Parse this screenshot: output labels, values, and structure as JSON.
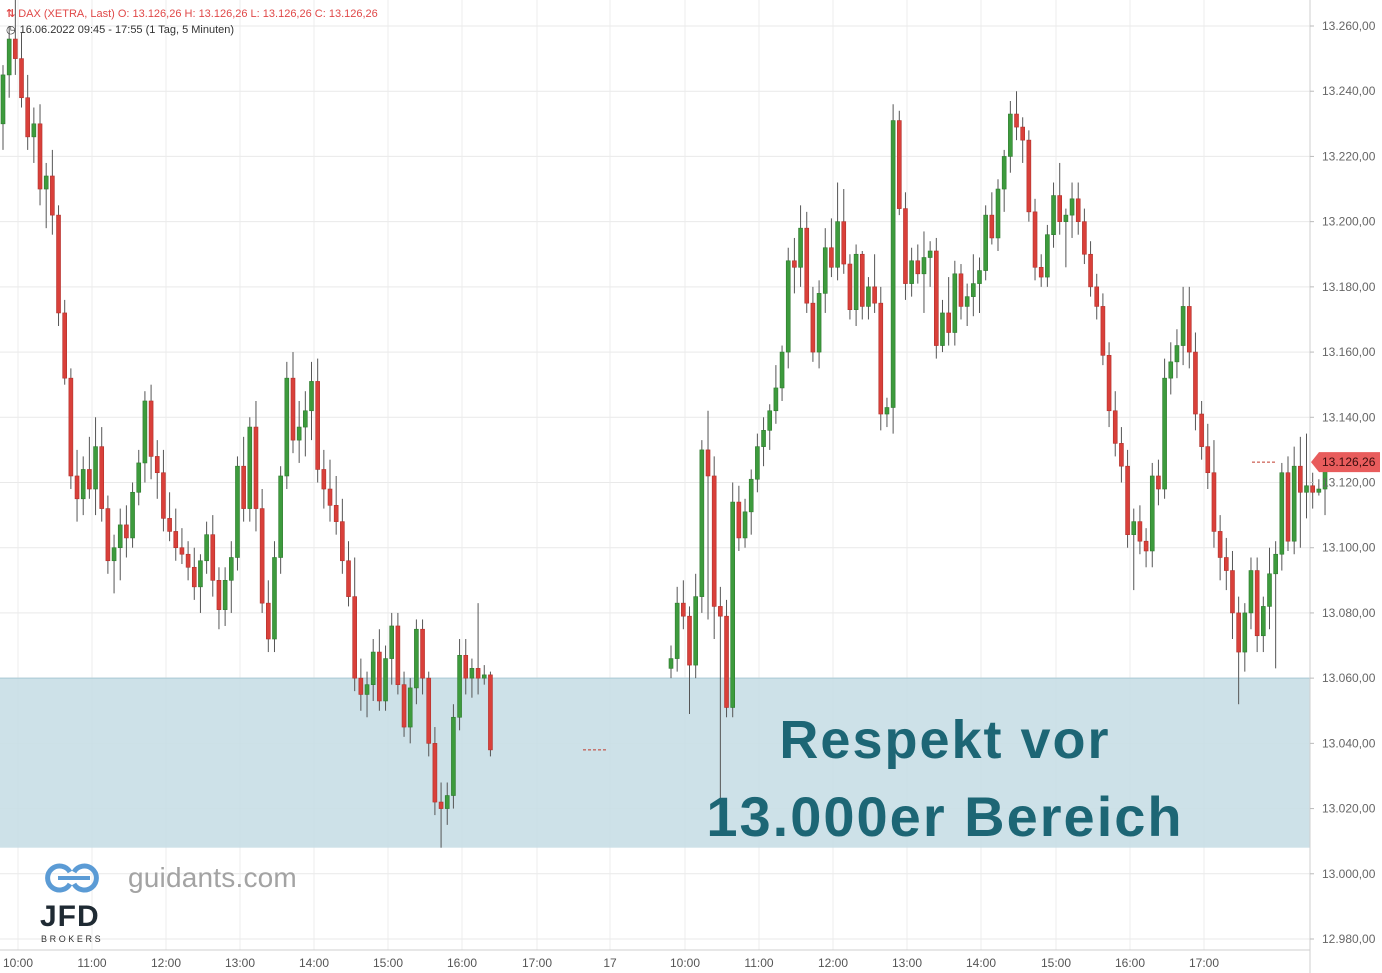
{
  "header": {
    "instrument_icon": "candlestick-icon",
    "ohlc_text": "DAX (XETRA, Last)  O: 13.126,26  H: 13.126,26  L: 13.126,26  C: 13.126,26",
    "clock_icon": "clock-icon",
    "period_text": "16.06.2022 09:45 - 17:55   (1 Tag, 5 Minuten)"
  },
  "annotation": {
    "line1": "Respekt vor",
    "line2": "13.000er Bereich"
  },
  "branding": {
    "site": "guidants.com",
    "logo": "JFD",
    "logo_sub": "BROKERS"
  },
  "colors": {
    "up": "#3d9b3d",
    "down": "#d9403a",
    "zone": "#c8dee6",
    "annotation_text": "#1d6675",
    "price_tag": "#e85c5c"
  },
  "chart_data": {
    "type": "candlestick",
    "title": "DAX (XETRA, Last)",
    "interval": "5 Minuten",
    "ylim": [
      12972,
      13268
    ],
    "y_ticks": [
      "13.260,00",
      "13.240,00",
      "13.220,00",
      "13.200,00",
      "13.180,00",
      "13.160,00",
      "13.140,00",
      "13.120,00",
      "13.100,00",
      "13.080,00",
      "13.060,00",
      "13.040,00",
      "13.020,00",
      "13.000,00",
      "12.980,00"
    ],
    "y_tick_values": [
      13260,
      13240,
      13220,
      13200,
      13180,
      13160,
      13140,
      13120,
      13100,
      13080,
      13060,
      13040,
      13020,
      13000,
      12980
    ],
    "x_labels": [
      "10:00",
      "11:00",
      "12:00",
      "13:00",
      "14:00",
      "15:00",
      "16:00",
      "17:00",
      "17",
      "10:00",
      "11:00",
      "12:00",
      "13:00",
      "14:00",
      "15:00",
      "16:00",
      "17:00"
    ],
    "last_price": 13126.26,
    "last_price_label": "13.126,26",
    "zone": {
      "low": 13008,
      "high": 13060
    },
    "candles": [
      [
        13230,
        13248,
        13222,
        13245
      ],
      [
        13245,
        13260,
        13238,
        13256
      ],
      [
        13256,
        13270,
        13245,
        13250
      ],
      [
        13250,
        13258,
        13235,
        13238
      ],
      [
        13238,
        13245,
        13222,
        13226
      ],
      [
        13226,
        13235,
        13218,
        13230
      ],
      [
        13230,
        13236,
        13205,
        13210
      ],
      [
        13210,
        13218,
        13198,
        13214
      ],
      [
        13214,
        13222,
        13196,
        13202
      ],
      [
        13202,
        13205,
        13168,
        13172
      ],
      [
        13172,
        13176,
        13150,
        13152
      ],
      [
        13152,
        13155,
        13118,
        13122
      ],
      [
        13122,
        13130,
        13108,
        13115
      ],
      [
        13115,
        13128,
        13110,
        13124
      ],
      [
        13124,
        13134,
        13115,
        13118
      ],
      [
        13118,
        13140,
        13110,
        13131
      ],
      [
        13131,
        13137,
        13108,
        13112
      ],
      [
        13112,
        13116,
        13092,
        13096
      ],
      [
        13096,
        13104,
        13086,
        13100
      ],
      [
        13100,
        13112,
        13090,
        13107
      ],
      [
        13107,
        13113,
        13097,
        13103
      ],
      [
        13103,
        13120,
        13100,
        13117
      ],
      [
        13117,
        13130,
        13113,
        13126
      ],
      [
        13126,
        13148,
        13120,
        13145
      ],
      [
        13145,
        13150,
        13121,
        13128
      ],
      [
        13128,
        13133,
        13115,
        13123
      ],
      [
        13123,
        13130,
        13105,
        13109
      ],
      [
        13109,
        13117,
        13102,
        13105
      ],
      [
        13105,
        13112,
        13096,
        13100
      ],
      [
        13100,
        13106,
        13095,
        13098
      ],
      [
        13098,
        13102,
        13090,
        13094
      ],
      [
        13094,
        13100,
        13084,
        13088
      ],
      [
        13088,
        13098,
        13080,
        13096
      ],
      [
        13096,
        13108,
        13092,
        13104
      ],
      [
        13104,
        13110,
        13085,
        13090
      ],
      [
        13090,
        13094,
        13075,
        13081
      ],
      [
        13081,
        13094,
        13076,
        13090
      ],
      [
        13090,
        13102,
        13080,
        13097
      ],
      [
        13097,
        13128,
        13093,
        13125
      ],
      [
        13125,
        13134,
        13108,
        13112
      ],
      [
        13112,
        13140,
        13108,
        13137
      ],
      [
        13137,
        13145,
        13105,
        13112
      ],
      [
        13112,
        13118,
        13080,
        13083
      ],
      [
        13083,
        13090,
        13068,
        13072
      ],
      [
        13072,
        13102,
        13068,
        13097
      ],
      [
        13097,
        13125,
        13092,
        13122
      ],
      [
        13122,
        13157,
        13118,
        13152
      ],
      [
        13152,
        13160,
        13129,
        13133
      ],
      [
        13133,
        13145,
        13126,
        13137
      ],
      [
        13137,
        13148,
        13128,
        13142
      ],
      [
        13142,
        13157,
        13133,
        13151
      ],
      [
        13151,
        13158,
        13120,
        13124
      ],
      [
        13124,
        13130,
        13112,
        13118
      ],
      [
        13118,
        13127,
        13108,
        13113
      ],
      [
        13113,
        13122,
        13104,
        13108
      ],
      [
        13108,
        13115,
        13092,
        13096
      ],
      [
        13096,
        13102,
        13082,
        13085
      ],
      [
        13085,
        13097,
        13056,
        13060
      ],
      [
        13060,
        13066,
        13050,
        13055
      ],
      [
        13055,
        13062,
        13048,
        13058
      ],
      [
        13058,
        13072,
        13053,
        13068
      ],
      [
        13068,
        13075,
        13050,
        13053
      ],
      [
        13053,
        13070,
        13050,
        13066
      ],
      [
        13066,
        13080,
        13058,
        13076
      ],
      [
        13076,
        13080,
        13055,
        13058
      ],
      [
        13058,
        13062,
        13042,
        13045
      ],
      [
        13045,
        13060,
        13040,
        13057
      ],
      [
        13057,
        13078,
        13052,
        13075
      ],
      [
        13075,
        13078,
        13055,
        13060
      ],
      [
        13060,
        13062,
        13036,
        13040
      ],
      [
        13040,
        13045,
        13018,
        13022
      ],
      [
        13022,
        13028,
        13008,
        13020
      ],
      [
        13020,
        13028,
        13015,
        13024
      ],
      [
        13024,
        13052,
        13020,
        13048
      ],
      [
        13048,
        13072,
        13044,
        13067
      ],
      [
        13067,
        13072,
        13055,
        13060
      ],
      [
        13060,
        13066,
        13054,
        13063
      ],
      [
        13063,
        13083,
        13055,
        13060
      ],
      [
        13060,
        13064,
        13058,
        13061
      ],
      [
        13061,
        13062,
        13036,
        13038
      ],
      [
        13063,
        13070,
        13060,
        13066
      ],
      [
        13066,
        13088,
        13062,
        13083
      ],
      [
        13083,
        13090,
        13075,
        13079
      ],
      [
        13079,
        13082,
        13049,
        13064
      ],
      [
        13064,
        13092,
        13060,
        13085
      ],
      [
        13085,
        13133,
        13080,
        13130
      ],
      [
        13130,
        13142,
        13078,
        13122
      ],
      [
        13122,
        13128,
        13072,
        13082
      ],
      [
        13082,
        13088,
        13021,
        13079
      ],
      [
        13079,
        13084,
        13048,
        13051
      ],
      [
        13051,
        13120,
        13048,
        13114
      ],
      [
        13114,
        13119,
        13099,
        13103
      ],
      [
        13103,
        13115,
        13100,
        13111
      ],
      [
        13111,
        13124,
        13104,
        13121
      ],
      [
        13121,
        13135,
        13117,
        13131
      ],
      [
        13131,
        13140,
        13125,
        13136
      ],
      [
        13136,
        13144,
        13130,
        13142
      ],
      [
        13142,
        13156,
        13138,
        13149
      ],
      [
        13149,
        13162,
        13145,
        13160
      ],
      [
        13160,
        13192,
        13155,
        13188
      ],
      [
        13188,
        13195,
        13178,
        13186
      ],
      [
        13186,
        13205,
        13180,
        13198
      ],
      [
        13198,
        13203,
        13172,
        13175
      ],
      [
        13175,
        13180,
        13157,
        13160
      ],
      [
        13160,
        13182,
        13155,
        13178
      ],
      [
        13178,
        13198,
        13172,
        13192
      ],
      [
        13192,
        13201,
        13183,
        13186
      ],
      [
        13186,
        13212,
        13182,
        13200
      ],
      [
        13200,
        13210,
        13184,
        13187
      ],
      [
        13187,
        13190,
        13170,
        13173
      ],
      [
        13173,
        13193,
        13168,
        13190
      ],
      [
        13190,
        13191,
        13170,
        13174
      ],
      [
        13174,
        13183,
        13170,
        13180
      ],
      [
        13180,
        13190,
        13172,
        13175
      ],
      [
        13175,
        13180,
        13136,
        13141
      ],
      [
        13141,
        13146,
        13137,
        13143
      ],
      [
        13143,
        13236,
        13135,
        13231
      ],
      [
        13231,
        13234,
        13202,
        13204
      ],
      [
        13204,
        13209,
        13176,
        13181
      ],
      [
        13181,
        13192,
        13177,
        13188
      ],
      [
        13188,
        13193,
        13181,
        13184
      ],
      [
        13184,
        13197,
        13172,
        13189
      ],
      [
        13189,
        13194,
        13180,
        13191
      ],
      [
        13191,
        13195,
        13158,
        13162
      ],
      [
        13162,
        13176,
        13160,
        13172
      ],
      [
        13172,
        13183,
        13162,
        13166
      ],
      [
        13166,
        13188,
        13162,
        13184
      ],
      [
        13184,
        13187,
        13170,
        13174
      ],
      [
        13174,
        13181,
        13168,
        13177
      ],
      [
        13177,
        13190,
        13171,
        13181
      ],
      [
        13181,
        13189,
        13172,
        13185
      ],
      [
        13185,
        13205,
        13182,
        13202
      ],
      [
        13202,
        13209,
        13193,
        13195
      ],
      [
        13195,
        13213,
        13191,
        13210
      ],
      [
        13210,
        13222,
        13203,
        13220
      ],
      [
        13220,
        13237,
        13215,
        13233
      ],
      [
        13233,
        13240,
        13225,
        13229
      ],
      [
        13229,
        13232,
        13218,
        13225
      ],
      [
        13225,
        13228,
        13200,
        13203
      ],
      [
        13203,
        13207,
        13182,
        13186
      ],
      [
        13186,
        13190,
        13180,
        13183
      ],
      [
        13183,
        13199,
        13180,
        13196
      ],
      [
        13196,
        13212,
        13192,
        13208
      ],
      [
        13208,
        13218,
        13196,
        13200
      ],
      [
        13200,
        13204,
        13186,
        13202
      ],
      [
        13202,
        13212,
        13195,
        13207
      ],
      [
        13207,
        13212,
        13196,
        13200
      ],
      [
        13200,
        13204,
        13187,
        13190
      ],
      [
        13190,
        13194,
        13177,
        13180
      ],
      [
        13180,
        13184,
        13170,
        13174
      ],
      [
        13174,
        13178,
        13156,
        13159
      ],
      [
        13159,
        13163,
        13137,
        13142
      ],
      [
        13142,
        13148,
        13128,
        13132
      ],
      [
        13132,
        13137,
        13120,
        13125
      ],
      [
        13125,
        13130,
        13100,
        13104
      ],
      [
        13104,
        13112,
        13087,
        13108
      ],
      [
        13108,
        13113,
        13098,
        13102
      ],
      [
        13102,
        13106,
        13094,
        13099
      ],
      [
        13099,
        13126,
        13094,
        13122
      ],
      [
        13122,
        13127,
        13113,
        13118
      ],
      [
        13118,
        13158,
        13115,
        13152
      ],
      [
        13152,
        13163,
        13147,
        13157
      ],
      [
        13157,
        13167,
        13152,
        13162
      ],
      [
        13162,
        13180,
        13156,
        13174
      ],
      [
        13174,
        13180,
        13155,
        13160
      ],
      [
        13160,
        13166,
        13136,
        13141
      ],
      [
        13141,
        13145,
        13127,
        13131
      ],
      [
        13131,
        13138,
        13118,
        13123
      ],
      [
        13123,
        13133,
        13100,
        13105
      ],
      [
        13105,
        13110,
        13090,
        13097
      ],
      [
        13097,
        13103,
        13087,
        13093
      ],
      [
        13093,
        13099,
        13072,
        13080
      ],
      [
        13080,
        13085,
        13052,
        13068
      ],
      [
        13068,
        13083,
        13062,
        13080
      ],
      [
        13080,
        13097,
        13075,
        13093
      ],
      [
        13093,
        13097,
        13068,
        13073
      ],
      [
        13073,
        13085,
        13068,
        13082
      ],
      [
        13082,
        13100,
        13075,
        13092
      ],
      [
        13092,
        13102,
        13063,
        13098
      ],
      [
        13098,
        13126,
        13093,
        13123
      ],
      [
        13123,
        13128,
        13099,
        13102
      ],
      [
        13102,
        13131,
        13098,
        13125
      ],
      [
        13125,
        13134,
        13100,
        13117
      ],
      [
        13117,
        13135,
        13109,
        13119
      ],
      [
        13119,
        13123,
        13112,
        13117
      ],
      [
        13117,
        13121,
        13116,
        13118
      ],
      [
        13118,
        13128,
        13110,
        13126
      ]
    ]
  }
}
